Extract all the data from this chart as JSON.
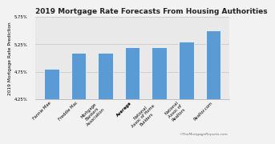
{
  "title": "2019 Mortgage Rate Forecasts From Housing Authorities",
  "ylabel": "2019 Mortgage Rate Prediction",
  "categories": [
    "Fannie Mae",
    "Freddie Mac",
    "Mortgage\nBankers\nAssociation",
    "Average",
    "National\nAssoc of Home\nBuilders",
    "National\nAssoc of\nRealtors",
    "Realtor.com"
  ],
  "values": [
    4.8,
    5.1,
    5.1,
    5.2,
    5.2,
    5.3,
    5.5
  ],
  "bar_color": "#5B9BD5",
  "average_index": 3,
  "ylim": [
    4.25,
    5.75
  ],
  "yticks": [
    4.25,
    4.75,
    5.25,
    5.75
  ],
  "background_color": "#f0f0f0",
  "plot_bg_color": "#e8e8e8",
  "title_fontsize": 6.5,
  "axis_label_fontsize": 4.2,
  "tick_fontsize": 3.8,
  "watermark": "©TheMortgageReports.com"
}
